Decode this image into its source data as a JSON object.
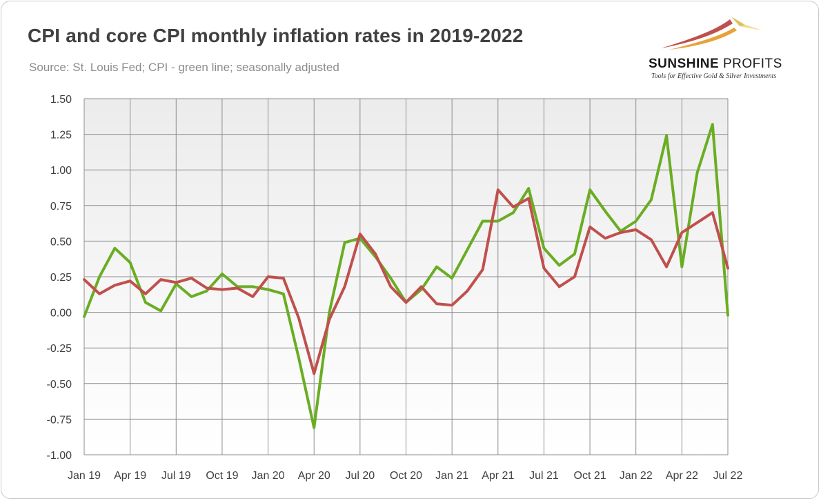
{
  "header": {
    "title": "CPI and core CPI monthly inflation rates in 2019-2022",
    "subtitle": "Source: St. Louis Fed; CPI - green line; seasonally adjusted"
  },
  "logo": {
    "name_bold": "SUNSHINE",
    "name_light": "PROFITS",
    "tagline": "Tools for Effective Gold & Silver Investments"
  },
  "colors": {
    "cpi_line": "#6aad23",
    "core_line": "#c0504d",
    "grid": "#8c8c8c",
    "background_top": "#ececec",
    "background_bottom": "#ffffff"
  },
  "chart_data": {
    "type": "line",
    "title": "CPI and core CPI monthly inflation rates in 2019-2022",
    "xlabel": "",
    "ylabel": "",
    "ylim": [
      -1.0,
      1.5
    ],
    "y_ticks": [
      "1.50",
      "1.25",
      "1.00",
      "0.75",
      "0.50",
      "0.25",
      "0.00",
      "-0.25",
      "-0.50",
      "-0.75",
      "-1.00"
    ],
    "x_tick_labels": [
      "Jan 19",
      "Apr 19",
      "Jul 19",
      "Oct 19",
      "Jan 20",
      "Apr 20",
      "Jul 20",
      "Oct 20",
      "Jan 21",
      "Apr 21",
      "Jul 21",
      "Oct 21",
      "Jan 22",
      "Apr 22",
      "Jul 22"
    ],
    "grid": true,
    "series": [
      {
        "name": "CPI",
        "color": "#6aad23",
        "values": [
          -0.03,
          0.25,
          0.45,
          0.35,
          0.07,
          0.01,
          0.2,
          0.11,
          0.15,
          0.27,
          0.18,
          0.18,
          0.16,
          0.13,
          -0.32,
          -0.81,
          0.0,
          0.49,
          0.52,
          0.39,
          0.24,
          0.07,
          0.16,
          0.32,
          0.24,
          0.44,
          0.64,
          0.64,
          0.7,
          0.87,
          0.45,
          0.33,
          0.41,
          0.86,
          0.71,
          0.57,
          0.64,
          0.79,
          1.24,
          0.32,
          0.98,
          1.32,
          -0.02
        ]
      },
      {
        "name": "Core CPI",
        "color": "#c0504d",
        "values": [
          0.23,
          0.13,
          0.19,
          0.22,
          0.13,
          0.23,
          0.21,
          0.24,
          0.17,
          0.16,
          0.17,
          0.11,
          0.25,
          0.24,
          -0.04,
          -0.43,
          -0.05,
          0.18,
          0.55,
          0.41,
          0.18,
          0.07,
          0.18,
          0.06,
          0.05,
          0.15,
          0.3,
          0.86,
          0.74,
          0.8,
          0.31,
          0.18,
          0.25,
          0.6,
          0.52,
          0.56,
          0.58,
          0.51,
          0.32,
          0.56,
          0.63,
          0.7,
          0.31
        ]
      }
    ]
  }
}
